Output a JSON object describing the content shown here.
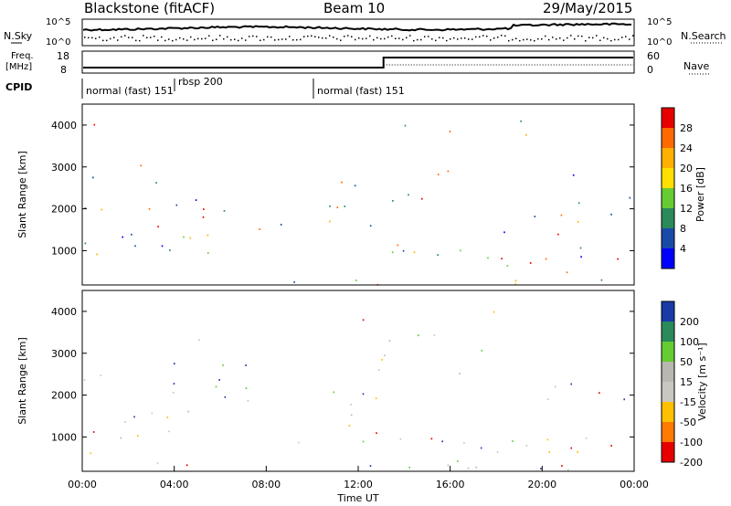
{
  "header": {
    "station": "Blackstone (fitACF)",
    "beam": "Beam 10",
    "date": "29/May/2015"
  },
  "top_panels": {
    "nsky_label": "N.Sky",
    "nsky_ticks": [
      "10^5",
      "10^0"
    ],
    "nsearch_label": "N.Search",
    "freq_label_1": "Freq.",
    "freq_label_2": "[MHz]",
    "freq_ticks": [
      "8",
      "18"
    ],
    "nave_ticks": [
      "60",
      "0"
    ],
    "nave_label": "Nave",
    "cpid_label": "CPID",
    "cpid_segments": [
      {
        "label": "normal (fast) 151",
        "start_hour": 0
      },
      {
        "label": "rbsp 200",
        "start_hour": 4
      },
      {
        "label": "normal (fast) 151",
        "start_hour": 10
      }
    ],
    "freq_step_hour": 13.1
  },
  "chart_data": [
    {
      "type": "heatmap",
      "title": "",
      "ylabel": "Slant Range [km]",
      "ylim": [
        180,
        4500
      ],
      "yticks": [
        1000,
        2000,
        3000,
        4000
      ],
      "xlim": [
        0,
        24
      ],
      "colorbar_label": "Power [dB]",
      "colorbar_ticks": [
        "28",
        "24",
        "20",
        "16",
        "12",
        "8",
        "4"
      ],
      "colorbar_colors": [
        "#e80000",
        "#ff6a00",
        "#ffb000",
        "#ffe000",
        "#66cc33",
        "#2a8a5a",
        "#1a4aa8",
        "#0000ff"
      ]
    },
    {
      "type": "heatmap",
      "title": "",
      "ylabel": "Slant Range [km]",
      "ylim": [
        180,
        4500
      ],
      "yticks": [
        1000,
        2000,
        3000,
        4000
      ],
      "xlim": [
        0,
        24
      ],
      "xlabel": "Time UT",
      "xticks": [
        "00:00",
        "04:00",
        "08:00",
        "12:00",
        "16:00",
        "20:00",
        "00:00"
      ],
      "colorbar_label": "Velocity [m s⁻¹]",
      "colorbar_ticks": [
        "200",
        "100",
        "50",
        "15",
        "-15",
        "-50",
        "-100",
        "-200"
      ],
      "colorbar_colors": [
        "#1a3aa8",
        "#2a8a5a",
        "#66cc33",
        "#b8b8b0",
        "#c8c8c0",
        "#ffc000",
        "#ff7a00",
        "#e80000"
      ]
    }
  ]
}
